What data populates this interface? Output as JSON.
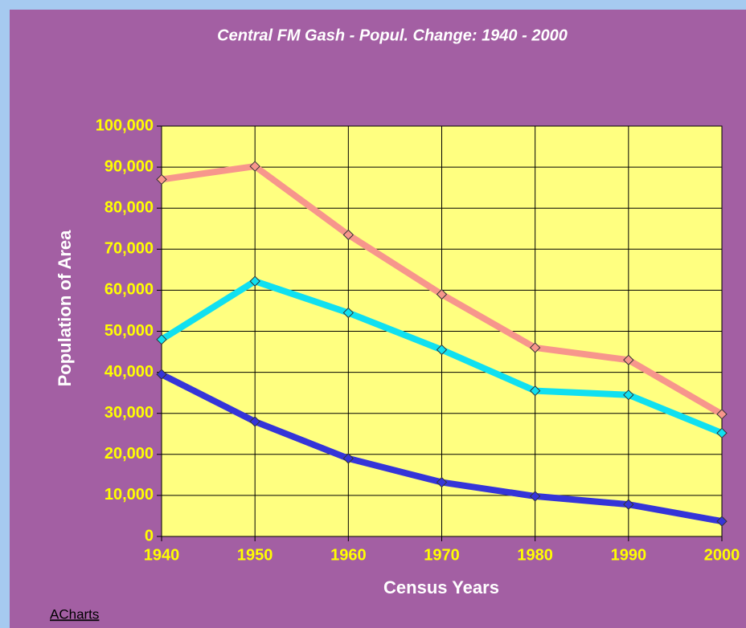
{
  "chart_data": {
    "type": "line",
    "title": "Central  FM Gash - Popul. Change: 1940 - 2000",
    "x_label": "Census Years",
    "y_label": "Population of Area",
    "x": [
      1940,
      1950,
      1960,
      1970,
      1980,
      1990,
      2000
    ],
    "xlim": [
      1940,
      2000
    ],
    "xticks": [
      1940,
      1950,
      1960,
      1970,
      1980,
      1990,
      2000
    ],
    "ylim": [
      0,
      100000
    ],
    "yticks": [
      0,
      {
        "value": 10000,
        "label": "10,000"
      },
      {
        "value": 20000,
        "label": "20,000"
      },
      {
        "value": 30000,
        "label": "30,000"
      },
      {
        "value": 40000,
        "label": "40,000"
      },
      {
        "value": 50000,
        "label": "50,000"
      },
      {
        "value": 60000,
        "label": "60,000"
      },
      {
        "value": 70000,
        "label": "70,000"
      },
      {
        "value": 80000,
        "label": "80,000"
      },
      {
        "value": 90000,
        "label": "90,000"
      },
      {
        "value": 100000,
        "label": "100,000"
      }
    ],
    "grid": true,
    "series": [
      {
        "color": "#f7968c",
        "values": [
          87000,
          90200,
          73500,
          59000,
          46000,
          43000,
          29800
        ]
      },
      {
        "color": "#10e0f0",
        "values": [
          48000,
          62200,
          54500,
          45500,
          35500,
          34500,
          25200
        ]
      },
      {
        "color": "#3535d8",
        "values": [
          39500,
          28000,
          19000,
          13200,
          9800,
          7800,
          3700
        ]
      }
    ]
  },
  "footer": {
    "link": "ACharts"
  }
}
